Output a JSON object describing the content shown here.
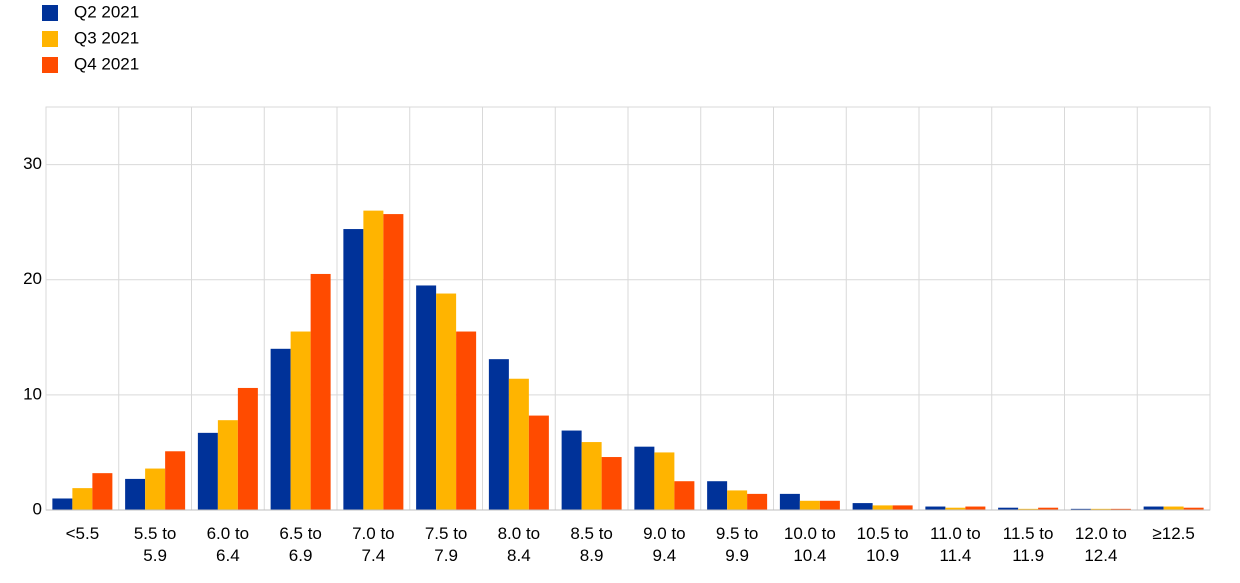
{
  "chart_data": {
    "type": "bar",
    "categories": [
      "<5.5",
      "5.5 to 5.9",
      "6.0 to 6.4",
      "6.5 to 6.9",
      "7.0 to 7.4",
      "7.5 to 7.9",
      "8.0 to 8.4",
      "8.5 to 8.9",
      "9.0 to 9.4",
      "9.5 to 9.9",
      "10.0 to 10.4",
      "10.5 to 10.9",
      "11.0 to 11.4",
      "11.5 to 11.9",
      "12.0 to 12.4",
      "≥12.5"
    ],
    "series": [
      {
        "name": "Q2 2021",
        "color": "#003299",
        "values": [
          1.0,
          2.7,
          6.7,
          14.0,
          24.4,
          19.5,
          13.1,
          6.9,
          5.5,
          2.5,
          1.4,
          0.6,
          0.3,
          0.2,
          0.1,
          0.3
        ]
      },
      {
        "name": "Q3 2021",
        "color": "#ffb400",
        "values": [
          1.9,
          3.6,
          7.8,
          15.5,
          26.0,
          18.8,
          11.4,
          5.9,
          5.0,
          1.7,
          0.8,
          0.4,
          0.2,
          0.1,
          0.1,
          0.3
        ]
      },
      {
        "name": "Q4 2021",
        "color": "#ff4b00",
        "values": [
          3.2,
          5.1,
          10.6,
          20.5,
          25.7,
          15.5,
          8.2,
          4.6,
          2.5,
          1.4,
          0.8,
          0.4,
          0.3,
          0.2,
          0.1,
          0.2
        ]
      }
    ],
    "ylim": [
      0,
      35
    ],
    "yticks": [
      0,
      10,
      20,
      30
    ],
    "grid": true,
    "legend": "top-left"
  }
}
